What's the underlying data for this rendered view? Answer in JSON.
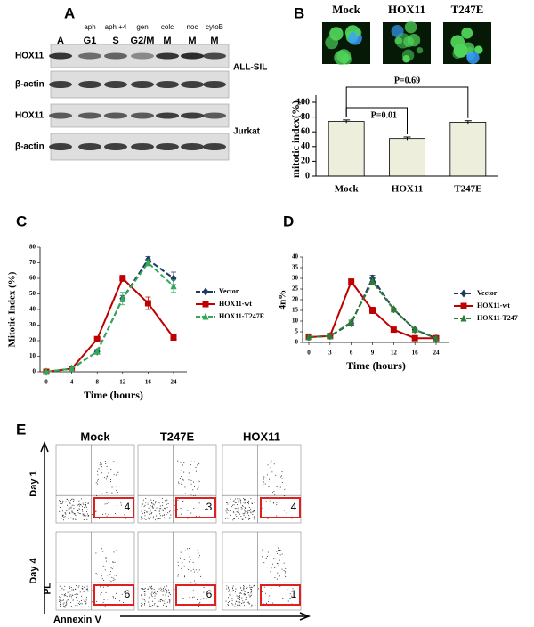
{
  "panel_labels": [
    "A",
    "B",
    "C",
    "D",
    "E"
  ],
  "blot": {
    "lane_treatments": [
      null,
      "aph",
      "aph +4",
      "gen",
      "colc",
      "noc",
      "cytoB"
    ],
    "lane_phases": [
      "A",
      "G1",
      "S",
      "G2/M",
      "M",
      "M",
      "M"
    ],
    "cell_lines": [
      {
        "name": "ALL-SIL",
        "rows": [
          "HOX11",
          "β-actin"
        ]
      },
      {
        "name": "Jurkat",
        "rows": [
          "HOX11",
          "β-actin"
        ]
      }
    ]
  },
  "images": {
    "labels": [
      "Mock",
      "HOX11",
      "T247E"
    ]
  },
  "chart_data": [
    {
      "type": "bar",
      "ylabel": "mitotic index(%)",
      "categories": [
        "Mock",
        "HOX11",
        "T247E"
      ],
      "values": [
        74,
        51,
        73
      ],
      "errors": [
        2,
        2,
        2
      ],
      "color": "#eeeedc",
      "ylim": [
        0,
        100
      ],
      "yticks": [
        0,
        20,
        40,
        60,
        80,
        100
      ],
      "annotations": [
        "P=0.01",
        "P=0.69"
      ]
    },
    {
      "type": "line",
      "xlabel": "Time (hours)",
      "ylabel": "Mitotic Index (%)",
      "categories": [
        "0",
        "4",
        "8",
        "12",
        "16",
        "24"
      ],
      "ylim": [
        0,
        80
      ],
      "yticks": [
        0,
        10,
        20,
        30,
        40,
        50,
        60,
        70,
        80
      ],
      "legend": "right",
      "series": [
        {
          "name": "Vector",
          "color": "#1f3864",
          "marker": "diamond",
          "dashed": true,
          "values": [
            0,
            2,
            13,
            47,
            72,
            60
          ],
          "errors": [
            0,
            0.5,
            1,
            2,
            2,
            4
          ]
        },
        {
          "name": "HOX11-wt",
          "color": "#c00000",
          "marker": "square",
          "dashed": false,
          "values": [
            0,
            2,
            21,
            60,
            44,
            22
          ],
          "errors": [
            0,
            0.5,
            1,
            2,
            4,
            1
          ]
        },
        {
          "name": "HOX11-T247E",
          "color": "#33aa55",
          "marker": "triangle",
          "dashed": true,
          "values": [
            0,
            2,
            13,
            47,
            70,
            55
          ],
          "errors": [
            0,
            0.5,
            1.5,
            4,
            2,
            4
          ]
        }
      ]
    },
    {
      "type": "line",
      "xlabel": "Time (hours)",
      "ylabel": "4n%",
      "categories": [
        "0",
        "3",
        "6",
        "9",
        "12",
        "16",
        "24"
      ],
      "ylim": [
        0,
        40
      ],
      "yticks": [
        0,
        5,
        10,
        15,
        20,
        25,
        30,
        35,
        40
      ],
      "legend": "right",
      "series": [
        {
          "name": "Vector",
          "color": "#1f3864",
          "marker": "diamond",
          "dashed": true,
          "values": [
            2.5,
            3,
            9,
            30,
            15.5,
            6,
            2
          ],
          "errors": [
            0.5,
            0.5,
            1,
            1.5,
            0.5,
            0.5,
            0.5
          ]
        },
        {
          "name": "HOX11-wt",
          "color": "#c00000",
          "marker": "square",
          "dashed": false,
          "values": [
            2.5,
            3,
            28.5,
            15,
            6,
            2,
            2
          ],
          "errors": [
            0.5,
            0.5,
            1,
            1.5,
            1,
            0.5,
            0.5
          ]
        },
        {
          "name": "HOX11-T247",
          "color": "#2e7d32",
          "marker": "triangle",
          "dashed": true,
          "values": [
            2.5,
            3,
            9.5,
            28.5,
            15.5,
            6,
            2
          ],
          "errors": [
            0.5,
            0.5,
            1,
            1.5,
            0.5,
            0.5,
            0.5
          ]
        }
      ]
    }
  ],
  "flow": {
    "columns": [
      "Mock",
      "T247E",
      "HOX11"
    ],
    "rows": [
      {
        "label": "Day 1",
        "values": [
          4,
          3,
          4
        ]
      },
      {
        "label": "Day 4",
        "values": [
          6,
          6,
          1
        ]
      }
    ],
    "y_axis": "PL",
    "x_axis": "Annexin V"
  }
}
